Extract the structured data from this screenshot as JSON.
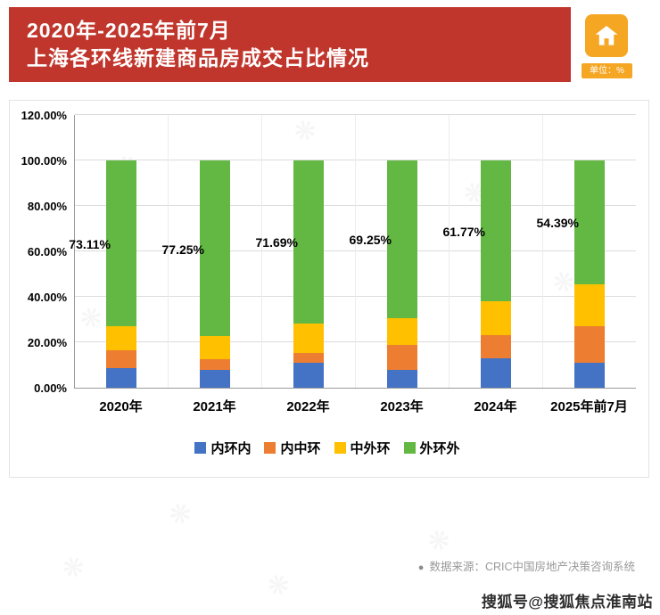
{
  "header": {
    "title_line1": "2020年-2025年前7月",
    "title_line2": "上海各环线新建商品房成交占比情况",
    "unit_label": "单位：%"
  },
  "icons": {
    "house_icon": "house-icon",
    "house_color": "#f5a623"
  },
  "chart_data": {
    "type": "bar",
    "stacked": true,
    "title": "2020年-2025年前7月上海各环线新建商品房成交占比情况",
    "categories": [
      "2020年",
      "2021年",
      "2022年",
      "2023年",
      "2024年",
      "2025年前7月"
    ],
    "series": [
      {
        "name": "内环内",
        "color": "#4472c4",
        "values": [
          8.5,
          8.0,
          11.0,
          8.0,
          13.0,
          11.0
        ]
      },
      {
        "name": "内中环",
        "color": "#ed7d31",
        "values": [
          8.0,
          4.5,
          4.3,
          10.75,
          10.0,
          16.0
        ]
      },
      {
        "name": "中外环",
        "color": "#ffc000",
        "values": [
          10.39,
          10.25,
          13.01,
          12.0,
          15.23,
          18.61
        ]
      },
      {
        "name": "外环外",
        "color": "#62b843",
        "values": [
          73.11,
          77.25,
          71.69,
          69.25,
          61.77,
          54.39
        ]
      }
    ],
    "value_labels": [
      "73.11%",
      "77.25%",
      "71.69%",
      "69.25%",
      "61.77%",
      "54.39%"
    ],
    "labeled_series": "外环外",
    "ylabel": "",
    "yticks": [
      "120.00%",
      "100.00%",
      "80.00%",
      "60.00%",
      "40.00%",
      "20.00%",
      "0.00%"
    ],
    "ylim": [
      0,
      120
    ],
    "grid": true,
    "legend_position": "bottom"
  },
  "footer": {
    "source_bullet": "●",
    "source_text": "数据来源：CRIC中国房地产决策咨询系统",
    "watermark": "搜狐号@搜狐焦点淮南站"
  }
}
